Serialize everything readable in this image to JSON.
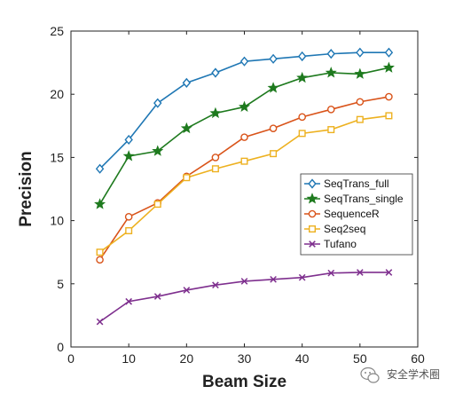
{
  "chart_data": {
    "type": "line",
    "xlabel": "Beam Size",
    "ylabel": "Precision",
    "xlim": [
      0,
      60
    ],
    "ylim": [
      0,
      25
    ],
    "xticks": [
      0,
      10,
      20,
      30,
      40,
      50,
      60
    ],
    "yticks": [
      0,
      5,
      10,
      15,
      20,
      25
    ],
    "grid": false,
    "legend_position": "right",
    "x": [
      5,
      10,
      15,
      20,
      25,
      30,
      35,
      40,
      45,
      50,
      55
    ],
    "series": [
      {
        "name": "SeqTrans_full",
        "color": "#1f77b4",
        "marker": "diamond",
        "values": [
          14.1,
          16.4,
          19.3,
          20.9,
          21.7,
          22.6,
          22.8,
          23.0,
          23.2,
          23.3,
          23.3
        ]
      },
      {
        "name": "SeqTrans_single",
        "color": "#1e7a1e",
        "marker": "star",
        "values": [
          11.3,
          15.1,
          15.5,
          17.3,
          18.5,
          19.0,
          20.5,
          21.3,
          21.7,
          21.6,
          22.1
        ]
      },
      {
        "name": "SequenceR",
        "color": "#d95319",
        "marker": "circle",
        "values": [
          6.9,
          10.3,
          11.4,
          13.5,
          15.0,
          16.6,
          17.3,
          18.2,
          18.8,
          19.4,
          19.8
        ]
      },
      {
        "name": "Seq2seq",
        "color": "#edb120",
        "marker": "square",
        "values": [
          7.5,
          9.2,
          11.3,
          13.4,
          14.1,
          14.7,
          15.3,
          16.9,
          17.2,
          18.0,
          18.3
        ]
      },
      {
        "name": "Tufano",
        "color": "#7e2f8e",
        "marker": "x",
        "values": [
          2.0,
          3.6,
          4.0,
          4.5,
          4.9,
          5.2,
          5.35,
          5.5,
          5.85,
          5.9,
          5.9
        ]
      }
    ]
  },
  "watermark": {
    "text": "安全学术圈",
    "icon": "wechat-icon"
  }
}
